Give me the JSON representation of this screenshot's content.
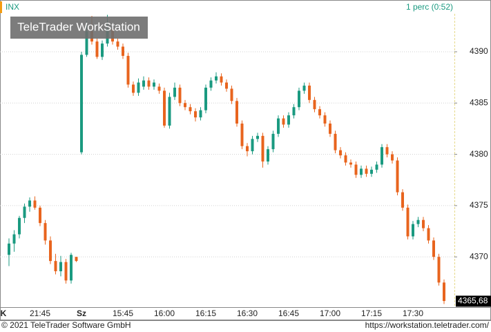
{
  "chart_data": {
    "type": "candlestick",
    "title": "INX",
    "interval": "1 perc (0:52)",
    "watermark": "TeleTrader WorkStation",
    "footer_left": "© 2021 TeleTrader Software GmbH",
    "footer_right": "https://workstation.teletrader.com/",
    "up_color": "#1a9a80",
    "down_color": "#e8641e",
    "ylim": [
      4365.1,
      4393.7
    ],
    "yticks": [
      4370,
      4375,
      4380,
      4385,
      4390
    ],
    "grid": true,
    "last_price": {
      "value": 4365.68,
      "label": "4365,68"
    },
    "categories": [
      "K",
      null,
      null,
      null,
      null,
      null,
      "21:45",
      null,
      null,
      null,
      null,
      null,
      null,
      null,
      "Sz",
      null,
      null,
      null,
      null,
      null,
      null,
      null,
      "15:45",
      null,
      null,
      null,
      null,
      null,
      null,
      null,
      "16:00",
      null,
      null,
      null,
      null,
      null,
      null,
      null,
      "16:15",
      null,
      null,
      null,
      null,
      null,
      null,
      null,
      "16:30",
      null,
      null,
      null,
      null,
      null,
      null,
      null,
      "16:45",
      null,
      null,
      null,
      null,
      null,
      null,
      null,
      "17:00",
      null,
      null,
      null,
      null,
      null,
      null,
      null,
      "17:15",
      null,
      null,
      null,
      null,
      null,
      null,
      null,
      "17:30",
      null,
      null,
      null,
      null,
      null,
      null
    ],
    "open": [
      4370.2,
      4371.3,
      4372.2,
      4373.8,
      4374.9,
      4375.5,
      4374.8,
      4373.3,
      4371.6,
      4369.6,
      4368.6,
      4369.5,
      4367.7,
      4370.0,
      4380.2,
      4389.7,
      4392.0,
      4391.0,
      4389.5,
      4390.8,
      4392.2,
      4391.0,
      4390.5,
      4389.6,
      4386.8,
      4386.0,
      4386.6,
      4387.2,
      4386.6,
      4386.6,
      4386.2,
      4382.8,
      4385.6,
      4386.5,
      4385.0,
      4384.6,
      4384.2,
      4383.6,
      4384.3,
      4386.5,
      4387.2,
      4387.6,
      4387.0,
      4386.4,
      4385.2,
      4383.0,
      4380.8,
      4380.3,
      4381.5,
      4381.8,
      4379.3,
      4380.5,
      4382.0,
      4383.5,
      4382.9,
      4383.8,
      4384.6,
      4386.2,
      4386.7,
      4385.3,
      4384.4,
      4383.8,
      4383.0,
      4382.0,
      4380.4,
      4379.9,
      4379.2,
      4379.0,
      4378.0,
      4378.6,
      4378.1,
      4378.5,
      4379.0,
      4380.7,
      4380.0,
      4379.4,
      4376.3,
      4374.8,
      4372.0,
      4373.2,
      4373.6,
      4372.8,
      4371.6,
      4370.0,
      4367.5
    ],
    "high": [
      4371.8,
      4372.6,
      4374.0,
      4375.2,
      4375.8,
      4375.9,
      4375.0,
      4373.6,
      4372.0,
      4370.3,
      4370.1,
      4369.8,
      4370.4,
      4370.0,
      4390.0,
      4393.0,
      4393.5,
      4391.3,
      4391.1,
      4393.6,
      4392.5,
      4391.3,
      4390.8,
      4389.9,
      4387.1,
      4387.4,
      4387.6,
      4387.5,
      4387.3,
      4386.9,
      4386.5,
      4386.0,
      4387.0,
      4386.8,
      4385.3,
      4384.9,
      4384.5,
      4384.6,
      4386.8,
      4387.5,
      4388.0,
      4387.9,
      4387.3,
      4386.7,
      4385.5,
      4383.3,
      4381.1,
      4381.8,
      4382.1,
      4382.1,
      4380.8,
      4382.3,
      4383.8,
      4383.8,
      4384.1,
      4384.9,
      4386.5,
      4387.0,
      4387.0,
      4385.6,
      4384.7,
      4384.1,
      4383.3,
      4382.3,
      4380.7,
      4380.2,
      4379.5,
      4379.3,
      4378.9,
      4378.9,
      4378.8,
      4379.3,
      4381.0,
      4381.0,
      4380.3,
      4379.7,
      4376.6,
      4375.1,
      4373.5,
      4373.9,
      4373.9,
      4373.1,
      4371.9,
      4370.3,
      4367.8
    ],
    "low": [
      4369.1,
      4370.5,
      4371.8,
      4373.3,
      4374.4,
      4374.6,
      4373.0,
      4371.2,
      4369.3,
      4368.3,
      4368.1,
      4367.4,
      4367.4,
      4369.5,
      4380.0,
      4389.5,
      4390.7,
      4389.3,
      4389.2,
      4390.5,
      4390.7,
      4390.2,
      4389.3,
      4386.5,
      4385.7,
      4385.7,
      4386.3,
      4386.3,
      4386.3,
      4385.9,
      4382.6,
      4382.5,
      4385.3,
      4384.7,
      4384.3,
      4383.9,
      4383.2,
      4383.3,
      4384.0,
      4386.2,
      4386.9,
      4386.7,
      4386.1,
      4384.9,
      4382.7,
      4380.5,
      4379.8,
      4380.0,
      4381.2,
      4378.7,
      4379.0,
      4380.2,
      4381.7,
      4382.6,
      4382.6,
      4383.5,
      4384.3,
      4385.9,
      4385.0,
      4384.1,
      4383.5,
      4382.7,
      4381.7,
      4380.1,
      4379.6,
      4378.9,
      4378.7,
      4377.7,
      4377.7,
      4377.8,
      4377.8,
      4378.2,
      4378.7,
      4379.7,
      4379.1,
      4376.0,
      4374.5,
      4371.7,
      4371.7,
      4372.9,
      4372.5,
      4371.3,
      4369.7,
      4367.2,
      4365.4
    ],
    "close": [
      4371.3,
      4372.2,
      4373.8,
      4374.9,
      4375.5,
      4374.8,
      4373.3,
      4371.6,
      4369.6,
      4368.6,
      4369.5,
      4367.7,
      4370.2,
      4369.6,
      4389.7,
      4392.0,
      4391.0,
      4389.5,
      4390.8,
      4392.2,
      4391.0,
      4390.5,
      4389.6,
      4386.8,
      4386.0,
      4387.0,
      4387.2,
      4386.6,
      4387.0,
      4386.2,
      4382.8,
      4385.6,
      4386.5,
      4385.0,
      4384.6,
      4384.2,
      4383.6,
      4384.3,
      4386.5,
      4387.2,
      4387.6,
      4387.0,
      4386.4,
      4385.2,
      4383.0,
      4380.8,
      4380.3,
      4381.5,
      4381.8,
      4379.3,
      4380.5,
      4382.0,
      4383.5,
      4382.9,
      4383.8,
      4384.6,
      4386.2,
      4386.7,
      4385.3,
      4384.4,
      4383.8,
      4383.0,
      4382.0,
      4380.4,
      4379.9,
      4379.2,
      4379.0,
      4378.0,
      4378.6,
      4378.1,
      4378.5,
      4379.0,
      4380.7,
      4380.0,
      4379.4,
      4376.3,
      4374.8,
      4372.0,
      4373.2,
      4373.6,
      4372.8,
      4371.6,
      4370.0,
      4367.5,
      4365.7
    ]
  }
}
